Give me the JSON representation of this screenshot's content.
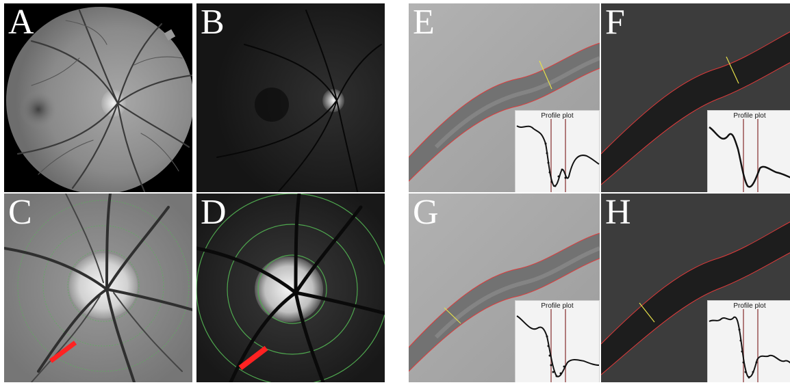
{
  "panels": {
    "A": {
      "label": "A"
    },
    "B": {
      "label": "B"
    },
    "C": {
      "label": "C"
    },
    "D": {
      "label": "D"
    },
    "E": {
      "label": "E",
      "inset_title": "Profile plot"
    },
    "F": {
      "label": "F",
      "inset_title": "Profile plot"
    },
    "G": {
      "label": "G",
      "inset_title": "Profile plot"
    },
    "H": {
      "label": "H",
      "inset_title": "Profile plot"
    }
  },
  "colors": {
    "vessel_edge": "#e03a3a",
    "crosssection": "#e6e04a",
    "marker": "#ff2222",
    "rings": "#4fa84f",
    "profile_bar": "#b07a7a"
  }
}
